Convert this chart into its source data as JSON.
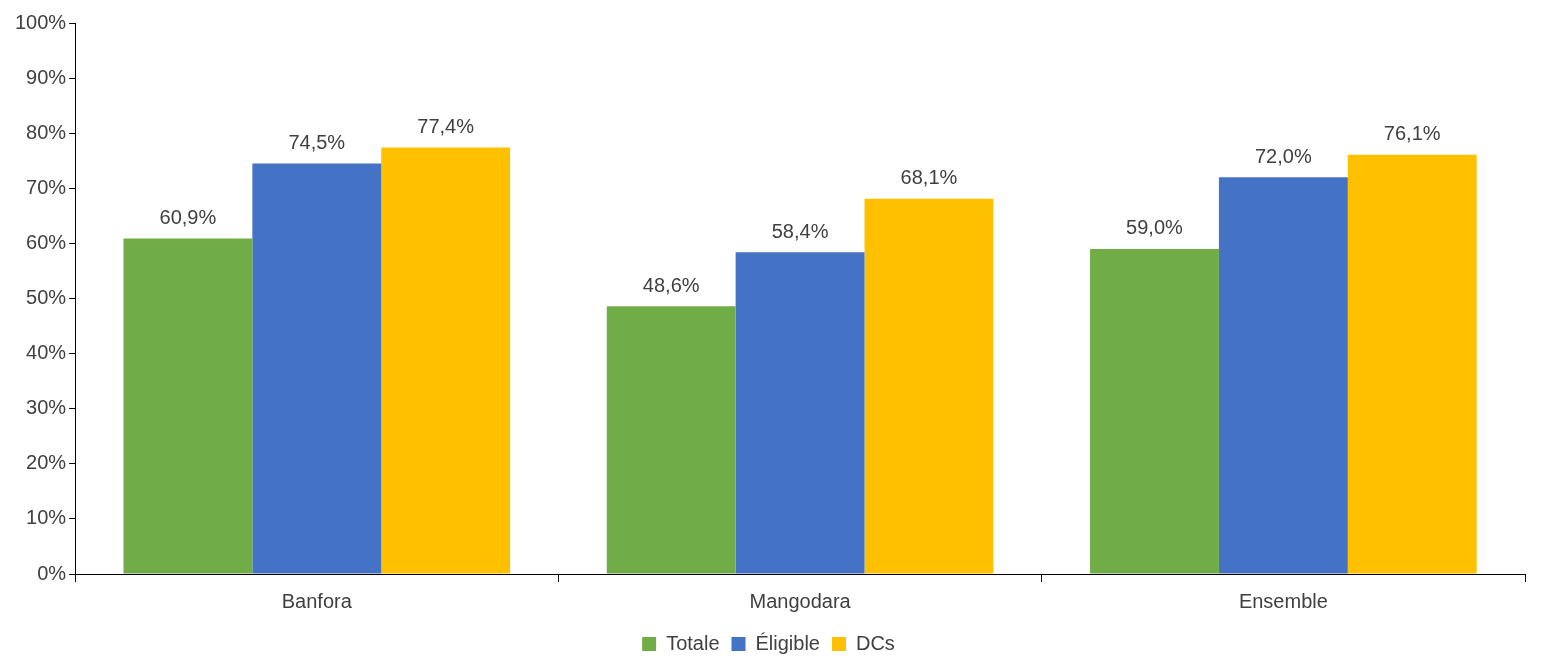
{
  "chart_data": {
    "type": "bar",
    "categories": [
      "Banfora",
      "Mangodara",
      "Ensemble"
    ],
    "series": [
      {
        "name": "Totale",
        "color": "#70ad47",
        "values": [
          60.9,
          48.6,
          59.0
        ],
        "value_labels": [
          "60,9%",
          "48,6%",
          "59,0%"
        ]
      },
      {
        "name": "Éligible",
        "color": "#4472c4",
        "values": [
          74.5,
          58.4,
          72.0
        ],
        "value_labels": [
          "74,5%",
          "58,4%",
          "72,0%"
        ]
      },
      {
        "name": "DCs",
        "color": "#ffc000",
        "values": [
          77.4,
          68.1,
          76.1
        ],
        "value_labels": [
          "77,4%",
          "68,1%",
          "76,1%"
        ]
      }
    ],
    "ylim": [
      0,
      100
    ],
    "yticks": [
      {
        "value": 0,
        "label": "0%"
      },
      {
        "value": 10,
        "label": "10%"
      },
      {
        "value": 20,
        "label": "20%"
      },
      {
        "value": 30,
        "label": "30%"
      },
      {
        "value": 40,
        "label": "40%"
      },
      {
        "value": 50,
        "label": "50%"
      },
      {
        "value": 60,
        "label": "60%"
      },
      {
        "value": 70,
        "label": "70%"
      },
      {
        "value": 80,
        "label": "80%"
      },
      {
        "value": 90,
        "label": "90%"
      },
      {
        "value": 100,
        "label": "100%"
      }
    ],
    "grid": false,
    "legend": "bottom"
  }
}
